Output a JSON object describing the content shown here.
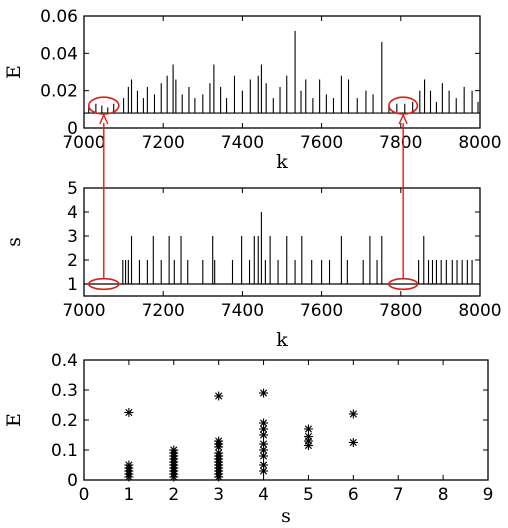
{
  "chart_data": [
    {
      "type": "line",
      "title": "",
      "xlabel": "k",
      "ylabel": "E",
      "xlim": [
        7000,
        8000
      ],
      "ylim": [
        0,
        0.06
      ],
      "x_ticks": [
        "7000",
        "7200",
        "7400",
        "7600",
        "7800",
        "8000"
      ],
      "y_ticks": [
        "0",
        "0.02",
        "0.04",
        "0.06"
      ],
      "baseline": 0.008,
      "spikes": [
        {
          "k": 7012,
          "E": 0.012
        },
        {
          "k": 7030,
          "E": 0.013
        },
        {
          "k": 7045,
          "E": 0.012
        },
        {
          "k": 7060,
          "E": 0.011
        },
        {
          "k": 7075,
          "E": 0.013
        },
        {
          "k": 7100,
          "E": 0.016
        },
        {
          "k": 7112,
          "E": 0.022
        },
        {
          "k": 7120,
          "E": 0.026
        },
        {
          "k": 7135,
          "E": 0.02
        },
        {
          "k": 7150,
          "E": 0.016
        },
        {
          "k": 7160,
          "E": 0.022
        },
        {
          "k": 7178,
          "E": 0.018
        },
        {
          "k": 7195,
          "E": 0.024
        },
        {
          "k": 7210,
          "E": 0.028
        },
        {
          "k": 7225,
          "E": 0.034
        },
        {
          "k": 7232,
          "E": 0.026
        },
        {
          "k": 7248,
          "E": 0.018
        },
        {
          "k": 7265,
          "E": 0.022
        },
        {
          "k": 7280,
          "E": 0.016
        },
        {
          "k": 7300,
          "E": 0.018
        },
        {
          "k": 7318,
          "E": 0.024
        },
        {
          "k": 7328,
          "E": 0.034
        },
        {
          "k": 7345,
          "E": 0.022
        },
        {
          "k": 7360,
          "E": 0.016
        },
        {
          "k": 7380,
          "E": 0.028
        },
        {
          "k": 7400,
          "E": 0.02
        },
        {
          "k": 7420,
          "E": 0.026
        },
        {
          "k": 7440,
          "E": 0.028
        },
        {
          "k": 7448,
          "E": 0.034
        },
        {
          "k": 7460,
          "E": 0.024
        },
        {
          "k": 7478,
          "E": 0.016
        },
        {
          "k": 7495,
          "E": 0.022
        },
        {
          "k": 7512,
          "E": 0.028
        },
        {
          "k": 7533,
          "E": 0.052
        },
        {
          "k": 7548,
          "E": 0.02
        },
        {
          "k": 7560,
          "E": 0.026
        },
        {
          "k": 7578,
          "E": 0.016
        },
        {
          "k": 7595,
          "E": 0.026
        },
        {
          "k": 7612,
          "E": 0.018
        },
        {
          "k": 7630,
          "E": 0.016
        },
        {
          "k": 7650,
          "E": 0.028
        },
        {
          "k": 7668,
          "E": 0.026
        },
        {
          "k": 7690,
          "E": 0.016
        },
        {
          "k": 7712,
          "E": 0.02
        },
        {
          "k": 7730,
          "E": 0.018
        },
        {
          "k": 7752,
          "E": 0.046
        },
        {
          "k": 7770,
          "E": 0.012
        },
        {
          "k": 7790,
          "E": 0.013
        },
        {
          "k": 7810,
          "E": 0.013
        },
        {
          "k": 7830,
          "E": 0.014
        },
        {
          "k": 7848,
          "E": 0.02
        },
        {
          "k": 7860,
          "E": 0.026
        },
        {
          "k": 7875,
          "E": 0.02
        },
        {
          "k": 7890,
          "E": 0.014
        },
        {
          "k": 7905,
          "E": 0.024
        },
        {
          "k": 7922,
          "E": 0.02
        },
        {
          "k": 7940,
          "E": 0.016
        },
        {
          "k": 7960,
          "E": 0.022
        },
        {
          "k": 7980,
          "E": 0.02
        },
        {
          "k": 7995,
          "E": 0.014
        }
      ],
      "highlights": [
        {
          "k_center": 7050,
          "E_center": 0.012,
          "k_halfwidth": 38,
          "E_halfheight": 0.0045
        },
        {
          "k_center": 7806,
          "E_center": 0.012,
          "k_halfwidth": 36,
          "E_halfheight": 0.0045
        }
      ],
      "highlight_color": "#d62020"
    },
    {
      "type": "line",
      "title": "",
      "xlabel": "k",
      "ylabel": "s",
      "xlim": [
        7000,
        8000
      ],
      "ylim": [
        0.5,
        5
      ],
      "x_ticks": [
        "7000",
        "7200",
        "7400",
        "7600",
        "7800",
        "8000"
      ],
      "y_ticks": [
        "1",
        "2",
        "3",
        "4",
        "5"
      ],
      "baseline": 1,
      "spikes": [
        {
          "k": 7098,
          "s": 2
        },
        {
          "k": 7105,
          "s": 2
        },
        {
          "k": 7112,
          "s": 2
        },
        {
          "k": 7120,
          "s": 3
        },
        {
          "k": 7140,
          "s": 2
        },
        {
          "k": 7160,
          "s": 2
        },
        {
          "k": 7175,
          "s": 3
        },
        {
          "k": 7195,
          "s": 2
        },
        {
          "k": 7215,
          "s": 3
        },
        {
          "k": 7228,
          "s": 2
        },
        {
          "k": 7245,
          "s": 3
        },
        {
          "k": 7262,
          "s": 2
        },
        {
          "k": 7300,
          "s": 2
        },
        {
          "k": 7325,
          "s": 3
        },
        {
          "k": 7330,
          "s": 2
        },
        {
          "k": 7375,
          "s": 2
        },
        {
          "k": 7398,
          "s": 3
        },
        {
          "k": 7418,
          "s": 2
        },
        {
          "k": 7430,
          "s": 3
        },
        {
          "k": 7440,
          "s": 3
        },
        {
          "k": 7448,
          "s": 4
        },
        {
          "k": 7458,
          "s": 2
        },
        {
          "k": 7470,
          "s": 3
        },
        {
          "k": 7490,
          "s": 2
        },
        {
          "k": 7512,
          "s": 3
        },
        {
          "k": 7533,
          "s": 2
        },
        {
          "k": 7550,
          "s": 3
        },
        {
          "k": 7575,
          "s": 2
        },
        {
          "k": 7600,
          "s": 2
        },
        {
          "k": 7620,
          "s": 2
        },
        {
          "k": 7650,
          "s": 3
        },
        {
          "k": 7665,
          "s": 2
        },
        {
          "k": 7705,
          "s": 2
        },
        {
          "k": 7722,
          "s": 3
        },
        {
          "k": 7740,
          "s": 2
        },
        {
          "k": 7752,
          "s": 3
        },
        {
          "k": 7845,
          "s": 2
        },
        {
          "k": 7858,
          "s": 3
        },
        {
          "k": 7870,
          "s": 2
        },
        {
          "k": 7880,
          "s": 2
        },
        {
          "k": 7890,
          "s": 2
        },
        {
          "k": 7902,
          "s": 2
        },
        {
          "k": 7915,
          "s": 2
        },
        {
          "k": 7930,
          "s": 2
        },
        {
          "k": 7942,
          "s": 2
        },
        {
          "k": 7955,
          "s": 2
        },
        {
          "k": 7968,
          "s": 2
        },
        {
          "k": 7980,
          "s": 2
        }
      ],
      "highlights": [
        {
          "k_center": 7050,
          "s_center": 1.0,
          "k_halfwidth": 38,
          "s_halfheight": 0.22
        },
        {
          "k_center": 7806,
          "s_center": 1.0,
          "k_halfwidth": 36,
          "s_halfheight": 0.22
        }
      ],
      "highlight_color": "#d62020"
    },
    {
      "type": "scatter",
      "title": "",
      "xlabel": "s",
      "ylabel": "E",
      "xlim": [
        0,
        9
      ],
      "ylim": [
        0,
        0.4
      ],
      "x_ticks": [
        "0",
        "1",
        "2",
        "3",
        "4",
        "5",
        "6",
        "7",
        "8",
        "9"
      ],
      "y_ticks": [
        "0",
        "0.1",
        "0.2",
        "0.3",
        "0.4"
      ],
      "marker": "asterisk",
      "points": [
        {
          "s": 1,
          "E": 0.225
        },
        {
          "s": 1,
          "E": 0.05
        },
        {
          "s": 1,
          "E": 0.04
        },
        {
          "s": 1,
          "E": 0.03
        },
        {
          "s": 1,
          "E": 0.02
        },
        {
          "s": 1,
          "E": 0.01
        },
        {
          "s": 2,
          "E": 0.1
        },
        {
          "s": 2,
          "E": 0.09
        },
        {
          "s": 2,
          "E": 0.08
        },
        {
          "s": 2,
          "E": 0.07
        },
        {
          "s": 2,
          "E": 0.06
        },
        {
          "s": 2,
          "E": 0.05
        },
        {
          "s": 2,
          "E": 0.04
        },
        {
          "s": 2,
          "E": 0.03
        },
        {
          "s": 2,
          "E": 0.02
        },
        {
          "s": 2,
          "E": 0.01
        },
        {
          "s": 3,
          "E": 0.28
        },
        {
          "s": 3,
          "E": 0.13
        },
        {
          "s": 3,
          "E": 0.12
        },
        {
          "s": 3,
          "E": 0.11
        },
        {
          "s": 3,
          "E": 0.09
        },
        {
          "s": 3,
          "E": 0.08
        },
        {
          "s": 3,
          "E": 0.07
        },
        {
          "s": 3,
          "E": 0.06
        },
        {
          "s": 3,
          "E": 0.05
        },
        {
          "s": 3,
          "E": 0.04
        },
        {
          "s": 3,
          "E": 0.03
        },
        {
          "s": 3,
          "E": 0.02
        },
        {
          "s": 3,
          "E": 0.01
        },
        {
          "s": 4,
          "E": 0.29
        },
        {
          "s": 4,
          "E": 0.19
        },
        {
          "s": 4,
          "E": 0.17
        },
        {
          "s": 4,
          "E": 0.15
        },
        {
          "s": 4,
          "E": 0.12
        },
        {
          "s": 4,
          "E": 0.1
        },
        {
          "s": 4,
          "E": 0.08
        },
        {
          "s": 4,
          "E": 0.05
        },
        {
          "s": 4,
          "E": 0.03
        },
        {
          "s": 5,
          "E": 0.17
        },
        {
          "s": 5,
          "E": 0.145
        },
        {
          "s": 5,
          "E": 0.13
        },
        {
          "s": 5,
          "E": 0.115
        },
        {
          "s": 6,
          "E": 0.22
        },
        {
          "s": 6,
          "E": 0.125
        }
      ]
    }
  ]
}
